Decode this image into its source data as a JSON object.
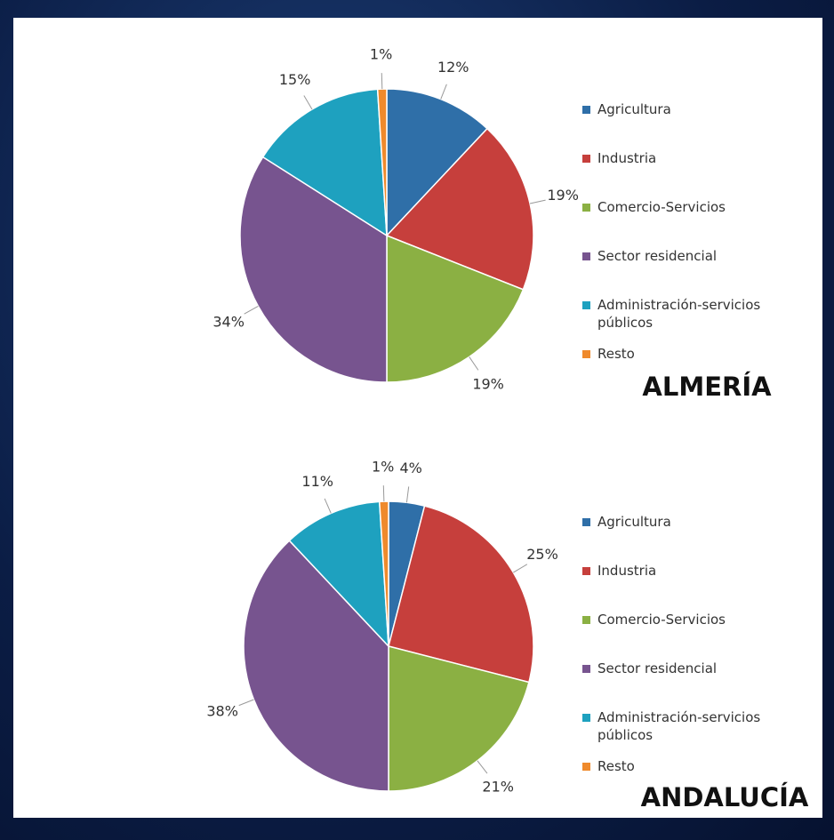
{
  "chart_data": [
    {
      "type": "pie",
      "title": "ALMERÍA",
      "categories": [
        "Agricultura",
        "Industria",
        "Comercio-Servicios",
        "Sector residencial",
        "Administración-servicios públicos",
        "Resto"
      ],
      "values": [
        12,
        19,
        19,
        34,
        15,
        1
      ],
      "value_labels": [
        "12%",
        "19%",
        "19%",
        "34%",
        "15%",
        "1%"
      ],
      "colors": [
        "#2f6fa8",
        "#c63f3c",
        "#8bb043",
        "#77548f",
        "#1ea1bf",
        "#ef8a2c"
      ]
    },
    {
      "type": "pie",
      "title": "ANDALUCÍA",
      "categories": [
        "Agricultura",
        "Industria",
        "Comercio-Servicios",
        "Sector residencial",
        "Administración-servicios públicos",
        "Resto"
      ],
      "values": [
        4,
        25,
        21,
        38,
        11,
        1
      ],
      "value_labels": [
        "4%",
        "25%",
        "21%",
        "38%",
        "11%",
        "1%"
      ],
      "colors": [
        "#2f6fa8",
        "#c63f3c",
        "#8bb043",
        "#77548f",
        "#1ea1bf",
        "#ef8a2c"
      ]
    }
  ]
}
